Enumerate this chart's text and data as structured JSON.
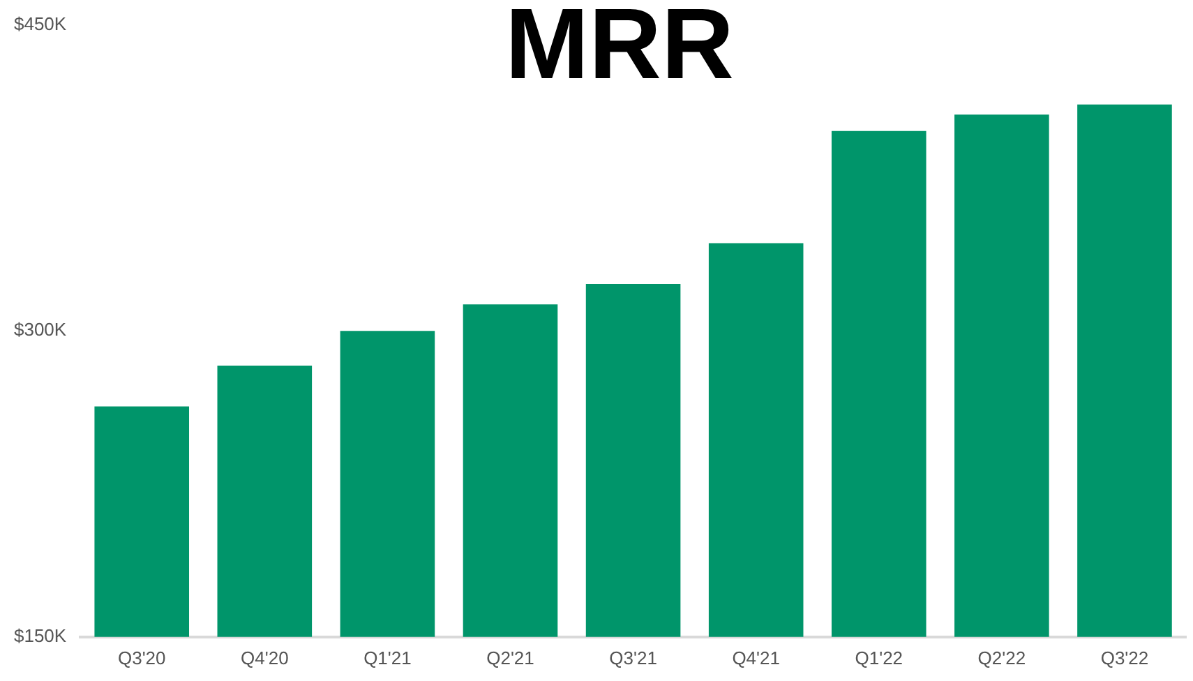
{
  "chart_data": {
    "type": "bar",
    "title": "MRR",
    "categories": [
      "Q3'20",
      "Q4'20",
      "Q1'21",
      "Q2'21",
      "Q3'21",
      "Q4'21",
      "Q1'22",
      "Q2'22",
      "Q3'22"
    ],
    "values": [
      263,
      283,
      300,
      313,
      323,
      343,
      398,
      406,
      411
    ],
    "color": "#00956a",
    "ylim": [
      150,
      450
    ],
    "yticks": [
      {
        "value": 150,
        "label": "$150K"
      },
      {
        "value": 300,
        "label": "$300K"
      },
      {
        "value": 450,
        "label": "$450K"
      }
    ],
    "grid": false,
    "legend": false
  }
}
